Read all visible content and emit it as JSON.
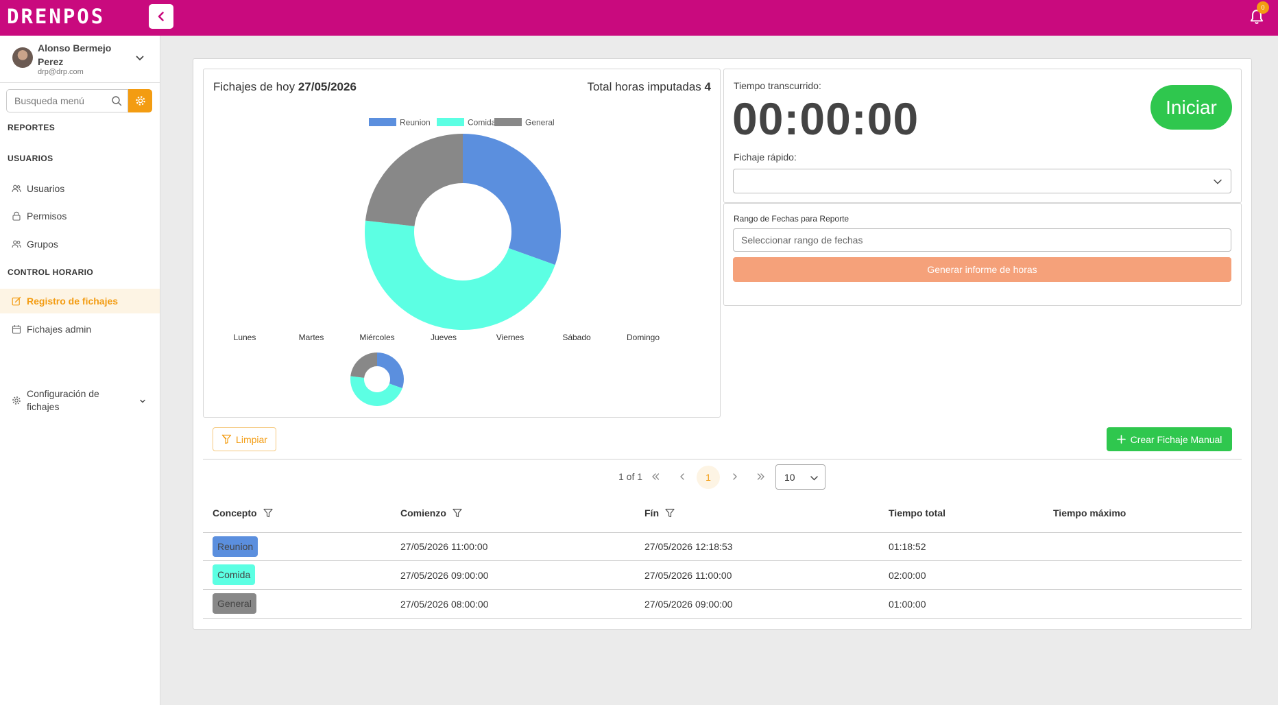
{
  "app": {
    "logo_text": "DRENPOS",
    "notification_count": "0"
  },
  "user": {
    "name": "Alonso Bermejo Perez",
    "email": "drp@drp.com"
  },
  "search": {
    "placeholder": "Busqueda menú"
  },
  "sidebar": {
    "sections": {
      "reportes": "REPORTES",
      "usuarios": "USUARIOS",
      "control": "CONTROL HORARIO"
    },
    "items": {
      "usuarios": "Usuarios",
      "permisos": "Permisos",
      "grupos": "Grupos",
      "registro": "Registro de fichajes",
      "fichajes_admin": "Fichajes admin",
      "configuracion": "Configuración de fichajes"
    }
  },
  "chart_panel": {
    "title_prefix": "Fichajes de hoy",
    "date": "27/05/2026",
    "total_prefix": "Total horas imputadas",
    "total_value": "4"
  },
  "chart_data": {
    "type": "pie",
    "variant": "doughnut",
    "legend_position": "top",
    "categories": [
      "Reunion",
      "Comida",
      "General"
    ],
    "values": [
      1.3147,
      2.0,
      1.0
    ],
    "colors": [
      "#5b8fde",
      "#5cffe3",
      "#888888"
    ],
    "week_labels": [
      "Lunes",
      "Martes",
      "Miércoles",
      "Jueves",
      "Viernes",
      "Sábado",
      "Domingo"
    ],
    "mini": {
      "day": "Miércoles",
      "values": [
        1.3147,
        2.0,
        1.0
      ]
    }
  },
  "timer": {
    "label": "Tiempo transcurrido:",
    "value": "00:00:00",
    "start_label": "Iniciar",
    "quick_label": "Fichaje rápido:",
    "quick_value": ""
  },
  "report": {
    "range_label": "Rango de Fechas para Reporte",
    "range_placeholder": "Seleccionar rango de fechas",
    "button_label": "Generar informe de horas"
  },
  "toolbar": {
    "clear_label": "Limpiar",
    "create_label": "Crear Fichaje Manual"
  },
  "pagination": {
    "info": "1 of 1",
    "current_page": "1",
    "page_size": "10"
  },
  "table": {
    "headers": [
      "Concepto",
      "Comienzo",
      "Fín",
      "Tiempo total",
      "Tiempo máximo"
    ],
    "rows": [
      {
        "concepto": "Reunion",
        "color": "#5b8fde",
        "comienzo": "27/05/2026 11:00:00",
        "fin": "27/05/2026 12:18:53",
        "total": "01:18:52",
        "maximo": ""
      },
      {
        "concepto": "Comida",
        "color": "#5cffe3",
        "comienzo": "27/05/2026 09:00:00",
        "fin": "27/05/2026 11:00:00",
        "total": "02:00:00",
        "maximo": ""
      },
      {
        "concepto": "General",
        "color": "#888888",
        "comienzo": "27/05/2026 08:00:00",
        "fin": "27/05/2026 09:00:00",
        "total": "01:00:00",
        "maximo": ""
      }
    ]
  }
}
